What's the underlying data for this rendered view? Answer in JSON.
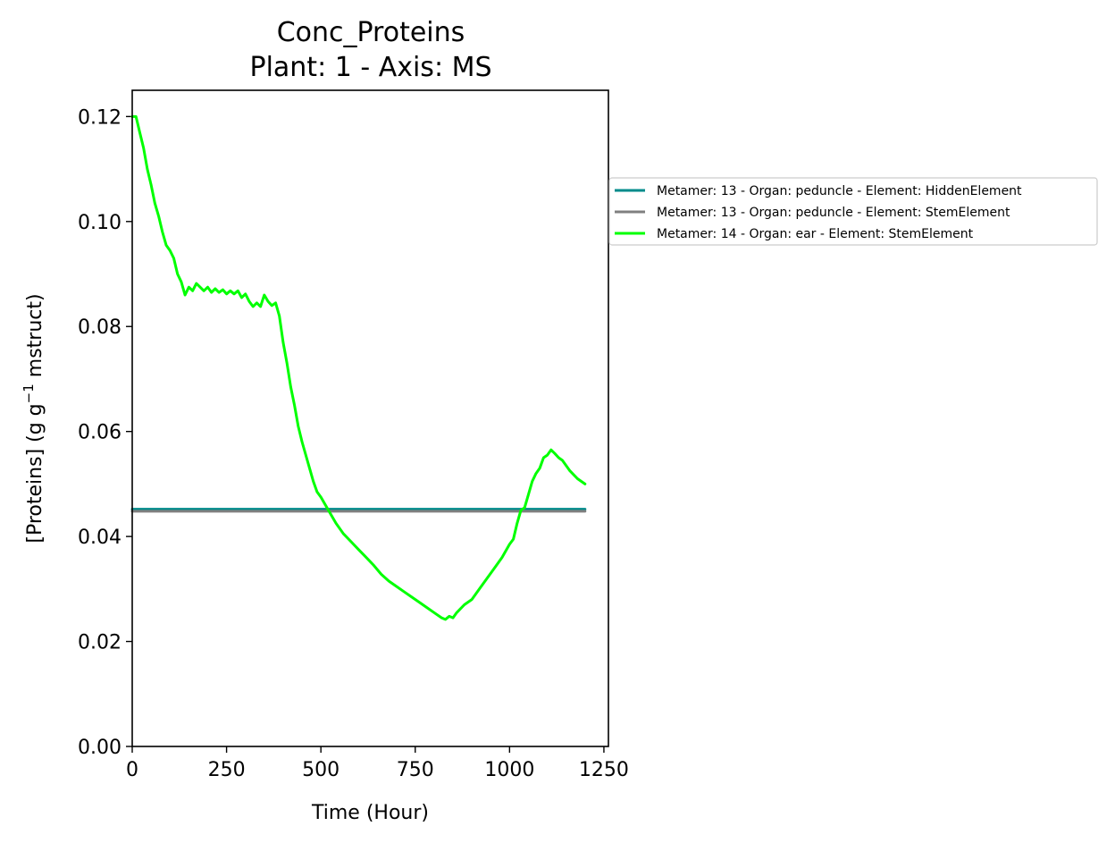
{
  "chart_data": {
    "type": "line",
    "title": "Conc_Proteins",
    "subtitle": "Plant: 1 - Axis: MS",
    "xlabel": "Time (Hour)",
    "ylabel_parts": [
      "[Proteins] (g g",
      "−1",
      " mstruct)"
    ],
    "xlim": [
      0,
      1262
    ],
    "ylim": [
      0,
      0.125
    ],
    "x_ticks": [
      0,
      250,
      500,
      750,
      1000,
      1250
    ],
    "x_tick_labels": [
      "0",
      "250",
      "500",
      "750",
      "1000",
      "1250"
    ],
    "y_ticks": [
      0,
      0.02,
      0.04,
      0.06,
      0.08,
      0.1,
      0.12
    ],
    "y_tick_labels": [
      "0.00",
      "0.02",
      "0.04",
      "0.06",
      "0.08",
      "0.10",
      "0.12"
    ],
    "grid": false,
    "legend_position": "outside-right",
    "series": [
      {
        "name": "Metamer: 13 - Organ: peduncle - Element: HiddenElement",
        "color": "#008b8b",
        "x": [
          0,
          1200
        ],
        "y": [
          0.0452,
          0.0452
        ]
      },
      {
        "name": "Metamer: 13 - Organ: peduncle - Element: StemElement",
        "color": "#808080",
        "x": [
          0,
          1200
        ],
        "y": [
          0.0448,
          0.0448
        ]
      },
      {
        "name": "Metamer: 14 - Organ: ear - Element: StemElement",
        "color": "#00ff00",
        "x": [
          0,
          10,
          20,
          30,
          40,
          50,
          60,
          70,
          80,
          90,
          100,
          110,
          120,
          130,
          140,
          150,
          160,
          170,
          180,
          190,
          200,
          210,
          220,
          230,
          240,
          250,
          260,
          270,
          280,
          290,
          300,
          310,
          320,
          330,
          340,
          350,
          360,
          370,
          380,
          390,
          400,
          410,
          420,
          430,
          440,
          450,
          460,
          470,
          480,
          490,
          500,
          520,
          540,
          560,
          580,
          600,
          620,
          640,
          660,
          680,
          700,
          720,
          740,
          760,
          780,
          800,
          820,
          830,
          840,
          850,
          860,
          880,
          900,
          920,
          940,
          960,
          980,
          1000,
          1010,
          1020,
          1030,
          1040,
          1050,
          1060,
          1070,
          1080,
          1090,
          1100,
          1110,
          1120,
          1130,
          1140,
          1160,
          1180,
          1200
        ],
        "y": [
          0.12,
          0.12,
          0.117,
          0.114,
          0.11,
          0.107,
          0.1035,
          0.101,
          0.098,
          0.0955,
          0.0945,
          0.093,
          0.09,
          0.0885,
          0.086,
          0.0875,
          0.0868,
          0.0882,
          0.0875,
          0.0868,
          0.0875,
          0.0865,
          0.0872,
          0.0865,
          0.087,
          0.0862,
          0.0868,
          0.0862,
          0.0868,
          0.0855,
          0.0862,
          0.0848,
          0.0838,
          0.0845,
          0.0838,
          0.086,
          0.0848,
          0.084,
          0.0845,
          0.082,
          0.077,
          0.073,
          0.0685,
          0.065,
          0.061,
          0.058,
          0.0555,
          0.053,
          0.0505,
          0.0485,
          0.0475,
          0.045,
          0.0425,
          0.0405,
          0.039,
          0.0375,
          0.036,
          0.0345,
          0.0328,
          0.0315,
          0.0305,
          0.0295,
          0.0285,
          0.0275,
          0.0265,
          0.0255,
          0.0245,
          0.0242,
          0.0248,
          0.0245,
          0.0255,
          0.027,
          0.028,
          0.03,
          0.032,
          0.034,
          0.036,
          0.0385,
          0.0395,
          0.0425,
          0.045,
          0.0455,
          0.048,
          0.0505,
          0.052,
          0.053,
          0.055,
          0.0555,
          0.0565,
          0.0558,
          0.055,
          0.0545,
          0.0525,
          0.051,
          0.05
        ]
      }
    ]
  }
}
